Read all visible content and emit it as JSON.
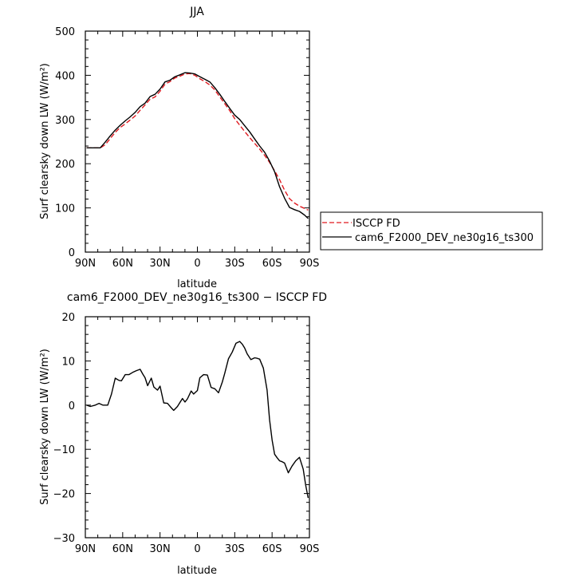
{
  "chart_data": [
    {
      "type": "line",
      "title": "JJA",
      "xlabel": "latitude",
      "ylabel": "Surf clearsky down LW (W/m²)",
      "ylim": [
        0,
        500
      ],
      "xlim": [
        90,
        -90
      ],
      "x_ticks": [
        90,
        60,
        30,
        0,
        -30,
        -60,
        -90
      ],
      "x_tick_labels": [
        "90N",
        "60N",
        "30N",
        "0",
        "30S",
        "60S",
        "90S"
      ],
      "y_ticks": [
        0,
        100,
        200,
        300,
        400,
        500
      ],
      "y_tick_labels": [
        "0",
        "100",
        "200",
        "300",
        "400",
        "500"
      ],
      "legend_position": "right",
      "series": [
        {
          "name": "ISCCP FD",
          "color": "#e0191f",
          "dash": "dashed",
          "x": [
            89,
            85,
            82,
            78,
            74,
            70,
            66,
            62,
            58,
            54,
            50,
            46,
            42,
            38,
            34,
            30,
            26,
            22,
            18,
            14,
            10,
            6,
            2,
            -2,
            -6,
            -10,
            -14,
            -18,
            -22,
            -26,
            -30,
            -34,
            -38,
            -42,
            -46,
            -50,
            -54,
            -58,
            -62,
            -66,
            -70,
            -74,
            -78,
            -82,
            -86,
            -89
          ],
          "y": [
            236,
            236,
            236,
            236,
            243,
            257,
            271,
            282,
            290,
            299,
            308,
            321,
            333,
            346,
            351,
            364,
            380,
            386,
            394,
            398,
            403,
            404,
            400,
            392,
            386,
            378,
            367,
            351,
            336,
            320,
            302,
            287,
            273,
            259,
            246,
            233,
            219,
            203,
            184,
            164,
            140,
            121,
            111,
            104,
            99,
            95
          ]
        },
        {
          "name": "cam6_F2000_DEV_ne30g16_ts300",
          "color": "#000000",
          "dash": "solid",
          "x": [
            89,
            85,
            82,
            78,
            74,
            70,
            66,
            62,
            58,
            54,
            50,
            46,
            42,
            38,
            34,
            30,
            26,
            22,
            18,
            14,
            10,
            6,
            2,
            -2,
            -6,
            -10,
            -14,
            -18,
            -22,
            -26,
            -30,
            -34,
            -38,
            -42,
            -46,
            -50,
            -54,
            -58,
            -62,
            -66,
            -70,
            -74,
            -78,
            -82,
            -86,
            -89
          ],
          "y": [
            236,
            236,
            236,
            236,
            249,
            263,
            276,
            287,
            297,
            306,
            316,
            329,
            337,
            352,
            357,
            369,
            385,
            389,
            397,
            401,
            406,
            405,
            403,
            397,
            391,
            385,
            372,
            357,
            341,
            325,
            310,
            300,
            286,
            272,
            256,
            240,
            226,
            206,
            182,
            148,
            122,
            101,
            96,
            92,
            84,
            76
          ]
        }
      ]
    },
    {
      "type": "line",
      "title": "cam6_F2000_DEV_ne30g16_ts300 − ISCCP FD",
      "xlabel": "latitude",
      "ylabel": "Surf clearsky down LW (W/m²)",
      "ylim": [
        -30,
        20
      ],
      "xlim": [
        90,
        -90
      ],
      "x_ticks": [
        90,
        60,
        30,
        0,
        -30,
        -60,
        -90
      ],
      "x_tick_labels": [
        "90N",
        "60N",
        "30N",
        "0",
        "30S",
        "60S",
        "90S"
      ],
      "y_ticks": [
        -30,
        -20,
        -10,
        0,
        10,
        20
      ],
      "y_tick_labels": [
        "−30",
        "−20",
        "−10",
        "0",
        "10",
        "20"
      ],
      "series": [
        {
          "color": "#000000",
          "x": [
            89,
            86,
            82,
            79,
            76,
            72,
            69,
            66,
            63,
            61,
            58,
            55,
            52,
            49,
            46,
            44,
            42,
            40,
            37,
            35,
            32,
            30,
            27,
            24,
            21,
            19,
            16,
            14,
            12,
            10,
            8,
            5,
            3,
            0,
            -2,
            -5,
            -8,
            -11,
            -14,
            -17,
            -20,
            -22,
            -25,
            -28,
            -31,
            -34,
            -36,
            -38,
            -40,
            -43,
            -46,
            -48,
            -50,
            -53,
            -56,
            -58,
            -60,
            -62,
            -64,
            -66,
            -68,
            -70,
            -73,
            -76,
            -79,
            -82,
            -85,
            -87,
            -89
          ],
          "y": [
            0.0,
            -0.3,
            0.0,
            0.4,
            0.0,
            0.0,
            2.5,
            6.1,
            5.6,
            5.5,
            6.9,
            6.9,
            7.4,
            7.8,
            8.1,
            7.1,
            6.2,
            4.4,
            6.1,
            4.1,
            3.4,
            4.3,
            0.5,
            0.4,
            -0.6,
            -1.2,
            -0.3,
            0.6,
            1.5,
            0.7,
            1.4,
            3.2,
            2.5,
            3.3,
            6.2,
            6.9,
            6.8,
            4.0,
            3.7,
            2.8,
            5.2,
            7.2,
            10.5,
            12.0,
            14.0,
            14.4,
            13.8,
            12.9,
            11.6,
            10.3,
            10.7,
            10.6,
            10.4,
            8.4,
            3.4,
            -3.3,
            -7.9,
            -11.1,
            -11.9,
            -12.6,
            -12.8,
            -13.1,
            -15.3,
            -13.8,
            -12.6,
            -11.8,
            -14.5,
            -18.1,
            -21.0
          ]
        }
      ]
    }
  ]
}
